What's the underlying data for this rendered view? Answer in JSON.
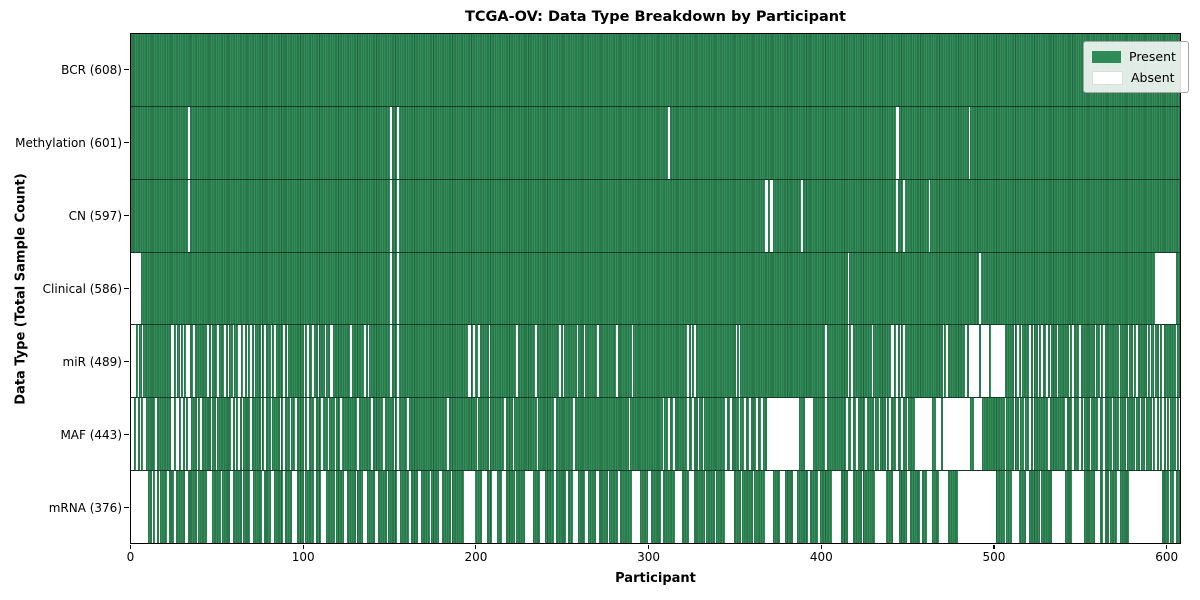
{
  "title": "TCGA-OV: Data Type Breakdown by Participant",
  "xlabel": "Participant",
  "ylabel": "Data Type (Total Sample Count)",
  "legend": {
    "present_label": "Present",
    "absent_label": "Absent"
  },
  "colors": {
    "present": "#2e8b57",
    "present_edge": "#1f6b42",
    "absent": "#ffffff"
  },
  "chart_data": {
    "type": "heatmap",
    "x_min": 0,
    "x_max": 608,
    "x_ticks": [
      0,
      100,
      200,
      300,
      400,
      500,
      600
    ],
    "legend_position": "upper right",
    "rows": [
      {
        "label": "BCR (608)",
        "count": 608,
        "absent_ranges": []
      },
      {
        "label": "Methylation (601)",
        "count": 601,
        "absent_ranges": [
          [
            33,
            33
          ],
          [
            150,
            150
          ],
          [
            154,
            154
          ],
          [
            311,
            311
          ],
          [
            443,
            444
          ],
          [
            485,
            485
          ]
        ]
      },
      {
        "label": "CN (597)",
        "count": 597,
        "absent_ranges": [
          [
            33,
            33
          ],
          [
            150,
            150
          ],
          [
            154,
            154
          ],
          [
            367,
            368
          ],
          [
            370,
            371
          ],
          [
            388,
            388
          ],
          [
            443,
            443
          ],
          [
            447,
            447
          ],
          [
            462,
            462
          ]
        ]
      },
      {
        "label": "Clinical (586)",
        "count": 586,
        "absent_ranges": [
          [
            0,
            5
          ],
          [
            150,
            150
          ],
          [
            154,
            154
          ],
          [
            415,
            415
          ],
          [
            491,
            491
          ],
          [
            593,
            604
          ]
        ]
      },
      {
        "label": "miR (489)",
        "count": 489,
        "absent_ranges": [
          [
            0,
            2
          ],
          [
            4,
            4
          ],
          [
            6,
            6
          ],
          [
            23,
            24
          ],
          [
            26,
            26
          ],
          [
            28,
            28
          ],
          [
            30,
            30
          ],
          [
            32,
            33
          ],
          [
            36,
            36
          ],
          [
            44,
            44
          ],
          [
            46,
            46
          ],
          [
            50,
            50
          ],
          [
            54,
            54
          ],
          [
            56,
            56
          ],
          [
            59,
            59
          ],
          [
            62,
            63
          ],
          [
            65,
            65
          ],
          [
            67,
            67
          ],
          [
            69,
            69
          ],
          [
            71,
            71
          ],
          [
            75,
            75
          ],
          [
            77,
            77
          ],
          [
            81,
            81
          ],
          [
            83,
            83
          ],
          [
            88,
            88
          ],
          [
            90,
            90
          ],
          [
            100,
            100
          ],
          [
            102,
            102
          ],
          [
            105,
            105
          ],
          [
            108,
            108
          ],
          [
            112,
            112
          ],
          [
            115,
            116
          ],
          [
            127,
            127
          ],
          [
            135,
            135
          ],
          [
            137,
            137
          ],
          [
            150,
            150
          ],
          [
            154,
            154
          ],
          [
            195,
            196
          ],
          [
            198,
            198
          ],
          [
            201,
            201
          ],
          [
            207,
            207
          ],
          [
            223,
            223
          ],
          [
            234,
            234
          ],
          [
            248,
            248
          ],
          [
            250,
            250
          ],
          [
            258,
            258
          ],
          [
            262,
            262
          ],
          [
            270,
            270
          ],
          [
            281,
            281
          ],
          [
            290,
            290
          ],
          [
            322,
            322
          ],
          [
            324,
            324
          ],
          [
            326,
            326
          ],
          [
            350,
            350
          ],
          [
            352,
            352
          ],
          [
            402,
            402
          ],
          [
            415,
            415
          ],
          [
            417,
            417
          ],
          [
            429,
            429
          ],
          [
            440,
            441
          ],
          [
            443,
            443
          ],
          [
            445,
            445
          ],
          [
            447,
            447
          ],
          [
            470,
            470
          ],
          [
            472,
            472
          ],
          [
            483,
            483
          ],
          [
            485,
            490
          ],
          [
            492,
            496
          ],
          [
            498,
            505
          ],
          [
            511,
            511
          ],
          [
            513,
            513
          ],
          [
            515,
            515
          ],
          [
            520,
            520
          ],
          [
            522,
            522
          ],
          [
            525,
            525
          ],
          [
            527,
            527
          ],
          [
            530,
            530
          ],
          [
            532,
            532
          ],
          [
            536,
            536
          ],
          [
            543,
            543
          ],
          [
            545,
            545
          ],
          [
            549,
            549
          ],
          [
            558,
            558
          ],
          [
            561,
            561
          ],
          [
            563,
            563
          ],
          [
            572,
            572
          ],
          [
            577,
            577
          ],
          [
            580,
            580
          ],
          [
            582,
            582
          ],
          [
            588,
            588
          ],
          [
            590,
            590
          ],
          [
            592,
            592
          ],
          [
            595,
            595
          ],
          [
            597,
            597
          ],
          [
            605,
            605
          ]
        ]
      },
      {
        "label": "MAF (443)",
        "count": 443,
        "absent_ranges": [
          [
            0,
            1
          ],
          [
            3,
            3
          ],
          [
            5,
            5
          ],
          [
            7,
            8
          ],
          [
            14,
            14
          ],
          [
            23,
            24
          ],
          [
            26,
            27
          ],
          [
            29,
            29
          ],
          [
            31,
            31
          ],
          [
            33,
            34
          ],
          [
            38,
            38
          ],
          [
            40,
            40
          ],
          [
            46,
            46
          ],
          [
            49,
            49
          ],
          [
            58,
            58
          ],
          [
            60,
            60
          ],
          [
            62,
            62
          ],
          [
            64,
            64
          ],
          [
            69,
            69
          ],
          [
            75,
            75
          ],
          [
            77,
            77
          ],
          [
            81,
            81
          ],
          [
            86,
            86
          ],
          [
            88,
            88
          ],
          [
            92,
            92
          ],
          [
            95,
            95
          ],
          [
            100,
            100
          ],
          [
            102,
            102
          ],
          [
            106,
            106
          ],
          [
            110,
            110
          ],
          [
            114,
            114
          ],
          [
            118,
            118
          ],
          [
            121,
            121
          ],
          [
            131,
            131
          ],
          [
            139,
            139
          ],
          [
            146,
            146
          ],
          [
            152,
            152
          ],
          [
            154,
            154
          ],
          [
            160,
            160
          ],
          [
            183,
            183
          ],
          [
            200,
            200
          ],
          [
            207,
            207
          ],
          [
            216,
            216
          ],
          [
            221,
            221
          ],
          [
            235,
            235
          ],
          [
            245,
            245
          ],
          [
            256,
            256
          ],
          [
            288,
            288
          ],
          [
            308,
            308
          ],
          [
            311,
            311
          ],
          [
            314,
            314
          ],
          [
            322,
            322
          ],
          [
            325,
            325
          ],
          [
            328,
            328
          ],
          [
            331,
            331
          ],
          [
            344,
            344
          ],
          [
            347,
            347
          ],
          [
            352,
            352
          ],
          [
            355,
            355
          ],
          [
            358,
            358
          ],
          [
            362,
            362
          ],
          [
            365,
            365
          ],
          [
            368,
            386
          ],
          [
            390,
            394
          ],
          [
            402,
            402
          ],
          [
            414,
            414
          ],
          [
            417,
            417
          ],
          [
            420,
            420
          ],
          [
            425,
            425
          ],
          [
            430,
            430
          ],
          [
            433,
            433
          ],
          [
            437,
            437
          ],
          [
            439,
            439
          ],
          [
            443,
            443
          ],
          [
            446,
            446
          ],
          [
            449,
            449
          ],
          [
            454,
            463
          ],
          [
            466,
            468
          ],
          [
            470,
            485
          ],
          [
            488,
            492
          ],
          [
            506,
            506
          ],
          [
            511,
            511
          ],
          [
            514,
            514
          ],
          [
            517,
            517
          ],
          [
            520,
            520
          ],
          [
            522,
            522
          ],
          [
            531,
            531
          ],
          [
            541,
            541
          ],
          [
            545,
            545
          ],
          [
            549,
            549
          ],
          [
            551,
            551
          ],
          [
            555,
            555
          ],
          [
            560,
            560
          ],
          [
            563,
            563
          ],
          [
            568,
            568
          ],
          [
            572,
            572
          ],
          [
            576,
            576
          ],
          [
            581,
            581
          ],
          [
            584,
            584
          ],
          [
            587,
            587
          ],
          [
            591,
            591
          ],
          [
            593,
            593
          ],
          [
            595,
            595
          ],
          [
            597,
            597
          ],
          [
            599,
            599
          ],
          [
            601,
            601
          ],
          [
            605,
            605
          ],
          [
            607,
            607
          ]
        ]
      },
      {
        "label": "mRNA (376)",
        "count": 376,
        "absent_ranges": [
          [
            0,
            9
          ],
          [
            12,
            12
          ],
          [
            14,
            14
          ],
          [
            16,
            16
          ],
          [
            21,
            21
          ],
          [
            25,
            25
          ],
          [
            31,
            32
          ],
          [
            38,
            38
          ],
          [
            44,
            46
          ],
          [
            52,
            52
          ],
          [
            57,
            58
          ],
          [
            64,
            64
          ],
          [
            69,
            70
          ],
          [
            76,
            76
          ],
          [
            81,
            82
          ],
          [
            88,
            88
          ],
          [
            93,
            95
          ],
          [
            100,
            100
          ],
          [
            106,
            106
          ],
          [
            110,
            112
          ],
          [
            118,
            118
          ],
          [
            123,
            124
          ],
          [
            130,
            130
          ],
          [
            134,
            136
          ],
          [
            141,
            142
          ],
          [
            148,
            148
          ],
          [
            154,
            155
          ],
          [
            161,
            161
          ],
          [
            166,
            167
          ],
          [
            173,
            173
          ],
          [
            178,
            179
          ],
          [
            185,
            185
          ],
          [
            193,
            198
          ],
          [
            203,
            205
          ],
          [
            209,
            211
          ],
          [
            215,
            216
          ],
          [
            222,
            222
          ],
          [
            228,
            232
          ],
          [
            237,
            239
          ],
          [
            245,
            245
          ],
          [
            252,
            252
          ],
          [
            256,
            258
          ],
          [
            263,
            264
          ],
          [
            269,
            270
          ],
          [
            276,
            276
          ],
          [
            282,
            282
          ],
          [
            290,
            294
          ],
          [
            299,
            300
          ],
          [
            307,
            307
          ],
          [
            315,
            318
          ],
          [
            323,
            325
          ],
          [
            332,
            332
          ],
          [
            338,
            338
          ],
          [
            344,
            348
          ],
          [
            353,
            353
          ],
          [
            360,
            360
          ],
          [
            367,
            371
          ],
          [
            376,
            378
          ],
          [
            383,
            385
          ],
          [
            392,
            392
          ],
          [
            398,
            398
          ],
          [
            406,
            410
          ],
          [
            415,
            417
          ],
          [
            423,
            423
          ],
          [
            431,
            436
          ],
          [
            441,
            444
          ],
          [
            449,
            450
          ],
          [
            457,
            457
          ],
          [
            461,
            463
          ],
          [
            468,
            472
          ],
          [
            479,
            500
          ],
          [
            506,
            506
          ],
          [
            510,
            513
          ],
          [
            518,
            519
          ],
          [
            526,
            526
          ],
          [
            533,
            540
          ],
          [
            545,
            551
          ],
          [
            558,
            560
          ],
          [
            563,
            563
          ],
          [
            566,
            566
          ],
          [
            571,
            572
          ],
          [
            578,
            596
          ],
          [
            601,
            601
          ],
          [
            604,
            604
          ]
        ]
      }
    ]
  }
}
